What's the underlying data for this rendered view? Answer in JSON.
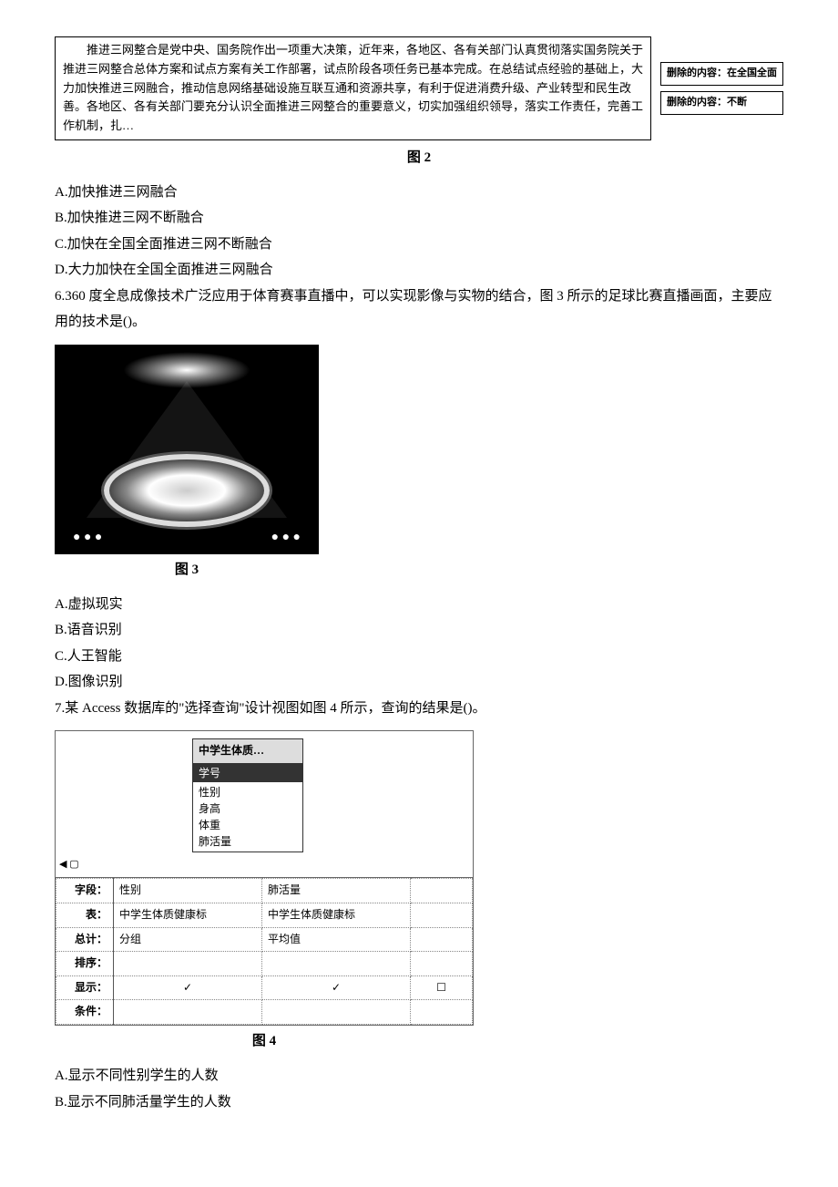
{
  "box": {
    "text": "　　推进三网整合是党中央、国务院作出一项重大决策，近年来，各地区、各有关部门认真贯彻落实国务院关于推进三网整合总体方案和试点方案有关工作部署，试点阶段各项任务已基本完成。在总结试点经验的基础上，大力加快推进三网融合，推动信息网络基础设施互联互通和资源共享，有利于促进消费升级、产业转型和民生改善。各地区、各有关部门要充分认识全面推进三网整合的重要意义，切实加强组织领导，落实工作责任，完善工作机制，扎…",
    "annot1": "删除的内容：在全国全面",
    "annot2": "删除的内容：不断"
  },
  "fig2": "图 2",
  "q5opts": {
    "a": "A.加快推进三网融合",
    "b": "B.加快推进三网不断融合",
    "c": "C.加快在全国全面推进三网不断融合",
    "d": "D.大力加快在全国全面推进三网融合"
  },
  "q6": {
    "stem": "6.360 度全息成像技术广泛应用于体育赛事直播中，可以实现影像与实物的结合，图 3 所示的足球比赛直播画面，主要应用的技术是()。",
    "a": "A.虚拟现实",
    "b": "B.语音识别",
    "c": "C.人王智能",
    "d": "D.图像识别"
  },
  "fig3": "图 3",
  "q7": {
    "stem": "7.某 Access 数据库的\"选择查询\"设计视图如图 4 所示，查询的结果是()。",
    "a": "A.显示不同性别学生的人数",
    "b": "B.显示不同肺活量学生的人数"
  },
  "access": {
    "tablename": "中学生体质…",
    "fields": [
      "学号",
      "性别",
      "身高",
      "体重",
      "肺活量"
    ],
    "rowlabels": {
      "field": "字段：",
      "table": "表：",
      "total": "总计：",
      "sort": "排序：",
      "show": "显示：",
      "crit": "条件："
    },
    "col1": {
      "field": "性别",
      "table": "中学生体质健康标",
      "total": "分组",
      "check": "✓"
    },
    "col2": {
      "field": "肺活量",
      "table": "中学生体质健康标",
      "total": "平均值",
      "check": "✓"
    }
  },
  "fig4": "图 4"
}
